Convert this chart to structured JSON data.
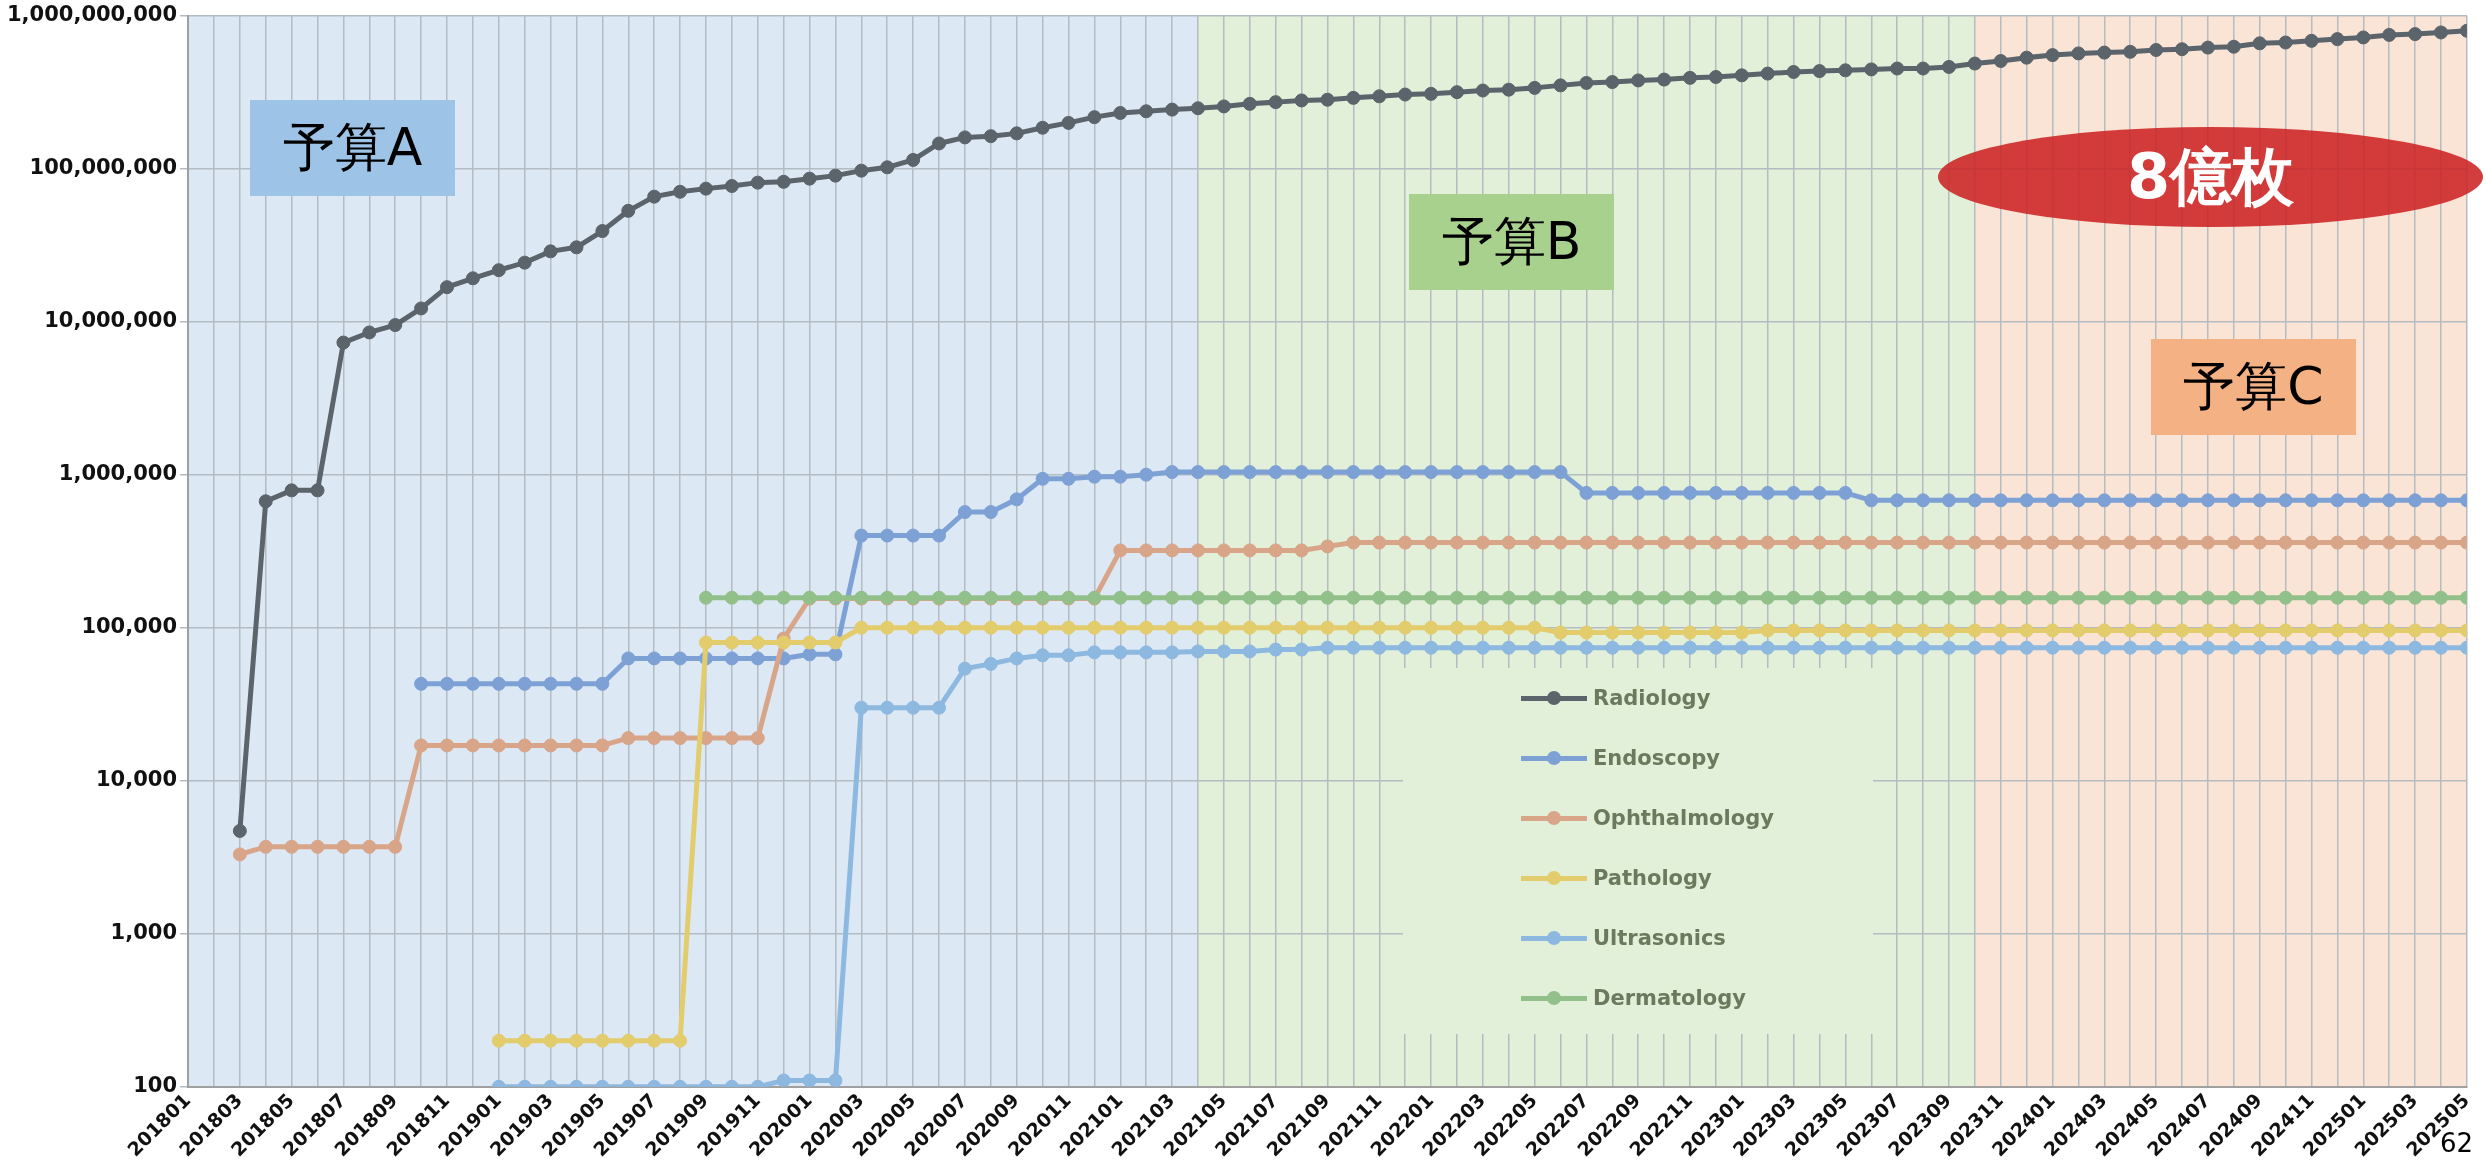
{
  "chart_data": {
    "type": "line",
    "log": "y",
    "grid": true,
    "legend": "bottom",
    "marker": "circle",
    "line_style": "solid",
    "annotations": [
      "8億枚",
      "62"
    ],
    "x": [
      "2018-03",
      "2018-04",
      "2018-05",
      "2018-06",
      "2018-07",
      "2018-08",
      "2018-09",
      "2018-10",
      "2018-11",
      "2018-12",
      "2019-01",
      "2019-02",
      "2019-03",
      "2019-04",
      "2019-05",
      "2019-06",
      "2019-07",
      "2019-08",
      "2019-09",
      "2019-10",
      "2019-11",
      "2019-12",
      "2020-01",
      "2020-02",
      "2020-03",
      "2020-04",
      "2020-05",
      "2020-06",
      "2020-07",
      "2020-08",
      "2020-09",
      "2020-10",
      "2020-11",
      "2020-12",
      "2021-01",
      "2021-02",
      "2021-03",
      "2021-04",
      "2021-05",
      "2021-06",
      "2021-07",
      "2021-08",
      "2021-09",
      "2021-10",
      "2021-11",
      "2021-12",
      "2022-01",
      "2022-02",
      "2022-03",
      "2022-04",
      "2022-05",
      "2022-06",
      "2022-07",
      "2022-08",
      "2022-09",
      "2022-10",
      "2022-11",
      "2022-12",
      "2023-01",
      "2023-02",
      "2023-03",
      "2023-04",
      "2023-05",
      "2023-06",
      "2023-07",
      "2023-08",
      "2023-09",
      "2023-10",
      "2023-11",
      "2023-12",
      "2024-01",
      "2024-02",
      "2024-03",
      "2024-04",
      "2024-05",
      "2024-06",
      "2024-07",
      "2024-08",
      "2024-09",
      "2024-10",
      "2024-11",
      "2024-12",
      "2025-01",
      "2025-02",
      "2025-03",
      "2025-04",
      "2025-05"
    ],
    "xlim": [
      "2018-01",
      "2025-05"
    ],
    "xticks": [
      {
        "value": "2018-01",
        "label": "201801"
      },
      {
        "value": "2018-02",
        "label": null
      },
      {
        "value": "2018-03",
        "label": "201803"
      },
      {
        "value": "2018-04",
        "label": null
      },
      {
        "value": "2018-05",
        "label": "201805"
      },
      {
        "value": "2018-06",
        "label": null
      },
      {
        "value": "2018-07",
        "label": "201807"
      },
      {
        "value": "2018-08",
        "label": null
      },
      {
        "value": "2018-09",
        "label": "201809"
      },
      {
        "value": "2018-10",
        "label": null
      },
      {
        "value": "2018-11",
        "label": "201811"
      },
      {
        "value": "2018-12",
        "label": null
      },
      {
        "value": "2019-01",
        "label": "201901"
      },
      {
        "value": "2019-02",
        "label": null
      },
      {
        "value": "2019-03",
        "label": "201903"
      },
      {
        "value": "2019-04",
        "label": null
      },
      {
        "value": "2019-05",
        "label": "201905"
      },
      {
        "value": "2019-06",
        "label": null
      },
      {
        "value": "2019-07",
        "label": "201907"
      },
      {
        "value": "2019-08",
        "label": null
      },
      {
        "value": "2019-09",
        "label": "201909"
      },
      {
        "value": "2019-10",
        "label": null
      },
      {
        "value": "2019-11",
        "label": "201911"
      },
      {
        "value": "2019-12",
        "label": null
      },
      {
        "value": "2020-01",
        "label": "202001"
      },
      {
        "value": "2020-02",
        "label": null
      },
      {
        "value": "2020-03",
        "label": "202003"
      },
      {
        "value": "2020-04",
        "label": null
      },
      {
        "value": "2020-05",
        "label": "202005"
      },
      {
        "value": "2020-06",
        "label": null
      },
      {
        "value": "2020-07",
        "label": "202007"
      },
      {
        "value": "2020-08",
        "label": null
      },
      {
        "value": "2020-09",
        "label": "202009"
      },
      {
        "value": "2020-10",
        "label": null
      },
      {
        "value": "2020-11",
        "label": "202011"
      },
      {
        "value": "2020-12",
        "label": null
      },
      {
        "value": "2021-01",
        "label": "202101"
      },
      {
        "value": "2021-02",
        "label": null
      },
      {
        "value": "2021-03",
        "label": "202103"
      },
      {
        "value": "2021-04",
        "label": null
      },
      {
        "value": "2021-05",
        "label": "202105"
      },
      {
        "value": "2021-06",
        "label": null
      },
      {
        "value": "2021-07",
        "label": "202107"
      },
      {
        "value": "2021-08",
        "label": null
      },
      {
        "value": "2021-09",
        "label": "202109"
      },
      {
        "value": "2021-10",
        "label": null
      },
      {
        "value": "2021-11",
        "label": "202111"
      },
      {
        "value": "2021-12",
        "label": null
      },
      {
        "value": "2022-01",
        "label": "202201"
      },
      {
        "value": "2022-02",
        "label": null
      },
      {
        "value": "2022-03",
        "label": "202203"
      },
      {
        "value": "2022-04",
        "label": null
      },
      {
        "value": "2022-05",
        "label": "202205"
      },
      {
        "value": "2022-06",
        "label": null
      },
      {
        "value": "2022-07",
        "label": "202207"
      },
      {
        "value": "2022-08",
        "label": null
      },
      {
        "value": "2022-09",
        "label": "202209"
      },
      {
        "value": "2022-10",
        "label": null
      },
      {
        "value": "2022-11",
        "label": "202211"
      },
      {
        "value": "2022-12",
        "label": null
      },
      {
        "value": "2023-01",
        "label": "202301"
      },
      {
        "value": "2023-02",
        "label": null
      },
      {
        "value": "2023-03",
        "label": "202303"
      },
      {
        "value": "2023-04",
        "label": null
      },
      {
        "value": "2023-05",
        "label": "202305"
      },
      {
        "value": "2023-06",
        "label": null
      },
      {
        "value": "2023-07",
        "label": "202307"
      },
      {
        "value": "2023-08",
        "label": null
      },
      {
        "value": "2023-09",
        "label": "202309"
      },
      {
        "value": "2023-10",
        "label": null
      },
      {
        "value": "2023-11",
        "label": "202311"
      },
      {
        "value": "2023-12",
        "label": null
      },
      {
        "value": "2024-01",
        "label": "202401"
      },
      {
        "value": "2024-02",
        "label": null
      },
      {
        "value": "2024-03",
        "label": "202403"
      },
      {
        "value": "2024-04",
        "label": null
      },
      {
        "value": "2024-05",
        "label": "202405"
      },
      {
        "value": "2024-06",
        "label": null
      },
      {
        "value": "2024-07",
        "label": "202407"
      },
      {
        "value": "2024-08",
        "label": null
      },
      {
        "value": "2024-09",
        "label": "202409"
      },
      {
        "value": "2024-10",
        "label": null
      },
      {
        "value": "2024-11",
        "label": "202411"
      },
      {
        "value": "2024-12",
        "label": null
      },
      {
        "value": "2025-01",
        "label": "202501"
      },
      {
        "value": "2025-02",
        "label": null
      },
      {
        "value": "2025-03",
        "label": "202503"
      },
      {
        "value": "2025-04",
        "label": null
      },
      {
        "value": "2025-05",
        "label": "202505"
      }
    ],
    "ylim": [
      100,
      1000000000
    ],
    "yticks": [
      100,
      {
        "value": 1000,
        "label": "1,000"
      },
      {
        "value": 10000,
        "label": "10,000"
      },
      {
        "value": 100000,
        "label": "100,000"
      },
      {
        "value": 1000000,
        "label": "1,000,000"
      },
      {
        "value": 10000000,
        "label": "10,000,000"
      },
      {
        "value": 100000000,
        "label": "100,000,000"
      },
      {
        "value": 1000000000,
        "label": "1,000,000,000"
      }
    ],
    "bands": [
      {
        "axis": "x",
        "from": "2018-01",
        "to": "2021-04",
        "label": "予算A",
        "color": "#dde8f5"
      },
      {
        "axis": "x",
        "from": "2021-04",
        "to": "2023-10",
        "label": "予算B",
        "color": "#e2efd9"
      },
      {
        "axis": "x",
        "from": "2023-10",
        "to": "2025-05",
        "label": "予算C",
        "color": "#fae4d6"
      }
    ],
    "series": [
      {
        "name": "Radiology",
        "color": "#5b636b",
        "values": [
          4700,
          670000,
          790000,
          790000,
          7300000,
          8500000,
          9500000,
          12200000,
          16800000,
          19200000,
          21700000,
          24300000,
          28800000,
          30600000,
          39100000,
          53000000,
          65600000,
          70600000,
          74000000,
          77000000,
          81000000,
          82000000,
          86000000,
          90000000,
          97000000,
          102000000,
          114000000,
          146000000,
          160000000,
          163000000,
          170000000,
          185000000,
          199000000,
          217000000,
          231000000,
          237000000,
          243000000,
          248000000,
          255000000,
          265000000,
          272000000,
          279000000,
          282000000,
          290000000,
          297000000,
          305000000,
          308000000,
          316000000,
          324000000,
          328000000,
          337000000,
          350000000,
          363000000,
          368000000,
          377000000,
          382000000,
          392000000,
          397000000,
          407000000,
          418000000,
          428000000,
          434000000,
          439000000,
          445000000,
          451000000,
          451000000,
          462000000,
          486000000,
          505000000,
          531000000,
          552000000,
          566000000,
          573000000,
          580000000,
          596000000,
          603000000,
          618000000,
          626000000,
          659000000,
          667000000,
          684000000,
          702000000,
          720000000,
          748000000,
          757000000,
          776000000,
          796000000
        ]
      },
      {
        "name": "Endoscopy",
        "color": "#7ea1d5",
        "values": [
          null,
          null,
          null,
          null,
          null,
          null,
          null,
          43000,
          43000,
          43000,
          43000,
          43000,
          43000,
          43000,
          43000,
          63000,
          63000,
          63000,
          63000,
          63000,
          63000,
          63000,
          67000,
          67000,
          400000,
          400000,
          400000,
          400000,
          570000,
          570000,
          690000,
          940000,
          940000,
          970000,
          970000,
          1000000,
          1040000,
          1040000,
          1040000,
          1040000,
          1040000,
          1040000,
          1040000,
          1040000,
          1040000,
          1040000,
          1040000,
          1040000,
          1040000,
          1040000,
          1040000,
          1040000,
          760000,
          760000,
          760000,
          760000,
          760000,
          760000,
          760000,
          760000,
          760000,
          760000,
          760000,
          680000,
          680000,
          680000,
          680000,
          680000,
          680000,
          680000,
          680000,
          680000,
          680000,
          680000,
          680000,
          680000,
          680000,
          680000,
          680000,
          680000,
          680000,
          680000,
          680000,
          680000,
          680000,
          680000,
          680000
        ]
      },
      {
        "name": "Ophthalmology",
        "color": "#d8a589",
        "values": [
          3300,
          3700,
          3700,
          3700,
          3700,
          3700,
          3700,
          17000,
          17000,
          17000,
          17000,
          17000,
          17000,
          17000,
          17000,
          19000,
          19000,
          19000,
          19000,
          19000,
          19000,
          85000,
          155000,
          155000,
          155000,
          155000,
          155000,
          155000,
          155000,
          155000,
          155000,
          155000,
          155000,
          155000,
          320000,
          320000,
          320000,
          320000,
          320000,
          320000,
          320000,
          320000,
          340000,
          360000,
          360000,
          360000,
          360000,
          360000,
          360000,
          360000,
          360000,
          360000,
          360000,
          360000,
          360000,
          360000,
          360000,
          360000,
          360000,
          360000,
          360000,
          360000,
          360000,
          360000,
          360000,
          360000,
          360000,
          360000,
          360000,
          360000,
          360000,
          360000,
          360000,
          360000,
          360000,
          360000,
          360000,
          360000,
          360000,
          360000,
          360000,
          360000,
          360000,
          360000,
          360000,
          360000,
          360000
        ]
      },
      {
        "name": "Pathology",
        "color": "#e2cc6c",
        "values": [
          null,
          null,
          null,
          null,
          null,
          null,
          null,
          null,
          null,
          null,
          200,
          200,
          200,
          200,
          200,
          200,
          200,
          200,
          80000,
          80000,
          80000,
          80000,
          80000,
          80000,
          100000,
          100000,
          100000,
          100000,
          100000,
          100000,
          100000,
          100000,
          100000,
          100000,
          100000,
          100000,
          100000,
          100000,
          100000,
          100000,
          100000,
          100000,
          100000,
          100000,
          100000,
          100000,
          100000,
          100000,
          100000,
          100000,
          100000,
          93000,
          93000,
          93000,
          93000,
          93000,
          93000,
          93000,
          93000,
          96000,
          96000,
          96000,
          96000,
          96000,
          96000,
          96000,
          96000,
          96000,
          96000,
          96000,
          96000,
          96000,
          96000,
          96000,
          96000,
          96000,
          96000,
          96000,
          96000,
          96000,
          96000,
          96000,
          96000,
          96000,
          96000,
          96000,
          96000
        ]
      },
      {
        "name": "Ultrasonics",
        "color": "#8db8e0",
        "values": [
          null,
          null,
          null,
          null,
          null,
          null,
          null,
          null,
          null,
          null,
          100,
          100,
          100,
          100,
          100,
          100,
          100,
          100,
          100,
          100,
          100,
          110,
          110,
          110,
          30000,
          30000,
          30000,
          30000,
          54000,
          58000,
          63000,
          66000,
          66000,
          69000,
          69000,
          69000,
          69000,
          70000,
          70000,
          70000,
          72000,
          72000,
          74000,
          74000,
          74000,
          74000,
          74000,
          74000,
          74000,
          74000,
          74000,
          74000,
          74000,
          74000,
          74000,
          74000,
          74000,
          74000,
          74000,
          74000,
          74000,
          74000,
          74000,
          74000,
          74000,
          74000,
          74000,
          74000,
          74000,
          74000,
          74000,
          74000,
          74000,
          74000,
          74000,
          74000,
          74000,
          74000,
          74000,
          74000,
          74000,
          74000,
          74000,
          74000,
          74000,
          74000,
          74000
        ]
      },
      {
        "name": "Dermatology",
        "color": "#92c08a",
        "values": [
          null,
          null,
          null,
          null,
          null,
          null,
          null,
          null,
          null,
          null,
          null,
          null,
          null,
          null,
          null,
          null,
          null,
          null,
          157000,
          157000,
          157000,
          157000,
          157000,
          157000,
          157000,
          157000,
          157000,
          157000,
          157000,
          157000,
          157000,
          157000,
          157000,
          157000,
          157000,
          157000,
          157000,
          157000,
          157000,
          157000,
          157000,
          157000,
          157000,
          157000,
          157000,
          157000,
          157000,
          157000,
          157000,
          157000,
          157000,
          157000,
          157000,
          157000,
          157000,
          157000,
          157000,
          157000,
          157000,
          157000,
          157000,
          157000,
          157000,
          157000,
          157000,
          157000,
          157000,
          157000,
          157000,
          157000,
          157000,
          157000,
          157000,
          157000,
          157000,
          157000,
          157000,
          157000,
          157000,
          157000,
          157000,
          157000,
          157000,
          157000,
          157000,
          157000,
          157000
        ]
      }
    ]
  }
}
